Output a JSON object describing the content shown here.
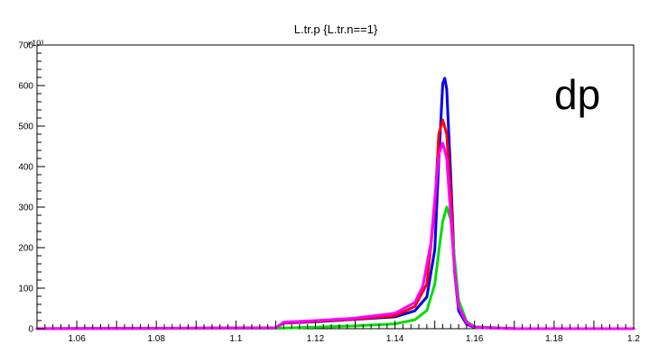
{
  "chart_data": {
    "type": "line",
    "title": "L.tr.p {L.tr.n==1}",
    "annotation": "dp",
    "y_multiplier_label": "×10³",
    "xlim": [
      1.05,
      1.2
    ],
    "ylim": [
      0,
      700
    ],
    "x_ticks": [
      "1.06",
      "1.08",
      "1.1",
      "1.12",
      "1.14",
      "1.16",
      "1.18",
      "1.2"
    ],
    "y_ticks": [
      "0",
      "100",
      "200",
      "300",
      "400",
      "500",
      "600",
      "700"
    ],
    "legend": "none",
    "grid": false,
    "series": [
      {
        "color": "#ffd700",
        "x": [
          1.05,
          1.11,
          1.112,
          1.12,
          1.13,
          1.14,
          1.145,
          1.148,
          1.15,
          1.151,
          1.152,
          1.1525,
          1.153,
          1.154,
          1.155,
          1.156,
          1.158,
          1.16,
          1.17,
          1.2
        ],
        "y": [
          0,
          2,
          15,
          18,
          24,
          30,
          45,
          80,
          200,
          420,
          600,
          615,
          590,
          380,
          140,
          45,
          12,
          3,
          0,
          0
        ]
      },
      {
        "color": "#0000ff",
        "x": [
          1.05,
          1.11,
          1.112,
          1.12,
          1.13,
          1.14,
          1.145,
          1.148,
          1.15,
          1.151,
          1.152,
          1.1525,
          1.153,
          1.154,
          1.155,
          1.156,
          1.158,
          1.16,
          1.17,
          1.2
        ],
        "y": [
          0,
          2,
          14,
          17,
          23,
          29,
          44,
          78,
          195,
          415,
          605,
          618,
          592,
          378,
          138,
          44,
          11,
          3,
          0,
          0
        ]
      },
      {
        "color": "#ff0000",
        "x": [
          1.05,
          1.11,
          1.112,
          1.12,
          1.13,
          1.14,
          1.145,
          1.148,
          1.15,
          1.151,
          1.152,
          1.153,
          1.154,
          1.155,
          1.156,
          1.158,
          1.16,
          1.17,
          1.2
        ],
        "y": [
          0,
          2,
          15,
          18,
          24,
          32,
          55,
          110,
          300,
          480,
          515,
          480,
          330,
          150,
          55,
          14,
          4,
          0,
          0
        ]
      },
      {
        "color": "#00dd00",
        "x": [
          1.05,
          1.11,
          1.12,
          1.13,
          1.14,
          1.145,
          1.148,
          1.15,
          1.151,
          1.152,
          1.153,
          1.154,
          1.155,
          1.156,
          1.158,
          1.16,
          1.17,
          1.2
        ],
        "y": [
          0,
          1,
          4,
          7,
          12,
          22,
          45,
          110,
          190,
          265,
          300,
          270,
          170,
          70,
          18,
          5,
          0,
          0
        ]
      },
      {
        "color": "#ff00ff",
        "x": [
          1.05,
          1.11,
          1.112,
          1.12,
          1.13,
          1.14,
          1.145,
          1.147,
          1.149,
          1.15,
          1.151,
          1.152,
          1.153,
          1.154,
          1.155,
          1.156,
          1.158,
          1.16,
          1.17,
          1.2
        ],
        "y": [
          0,
          2,
          16,
          20,
          26,
          38,
          65,
          105,
          210,
          320,
          430,
          458,
          420,
          280,
          140,
          55,
          15,
          4,
          0,
          0
        ]
      }
    ]
  }
}
